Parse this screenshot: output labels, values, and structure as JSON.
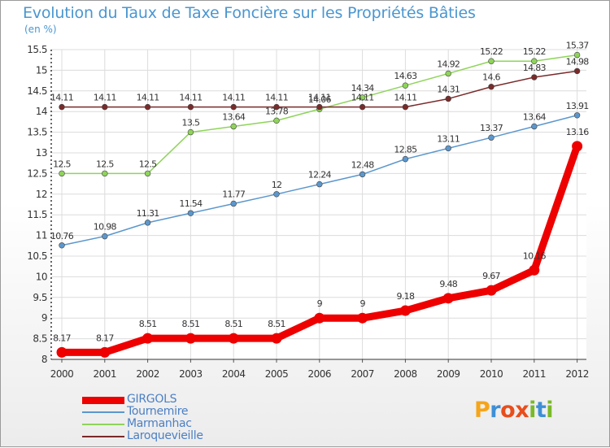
{
  "title": "Evolution du Taux de Taxe Foncière sur les Propriétés Bâties",
  "unit_label": "(en %)",
  "brand": {
    "text": "Proxiti",
    "letters": [
      "P",
      "r",
      "o",
      "x",
      "i",
      "t",
      "i"
    ],
    "colors": [
      "#f5a51a",
      "#3e8fd6",
      "#e84e1b",
      "#e84e1b",
      "#7ab929",
      "#3e8fd6",
      "#7ab929"
    ]
  },
  "chart_data": {
    "type": "line",
    "title": "Evolution du Taux de Taxe Foncière sur les Propriétés Bâties",
    "ylabel": "(en %)",
    "xlabel": "",
    "x": [
      "2000",
      "2001",
      "2002",
      "2003",
      "2004",
      "2005",
      "2006",
      "2007",
      "2008",
      "2009",
      "2010",
      "2011",
      "2012"
    ],
    "ylim": [
      8,
      15.5
    ],
    "yticks": [
      "8",
      "8.5",
      "9",
      "9.5",
      "10",
      "10.5",
      "11",
      "11.5",
      "12",
      "12.5",
      "13",
      "13.5",
      "14",
      "14.5",
      "15",
      "15.5"
    ],
    "grid": true,
    "legend_position": "bottom-left",
    "series": [
      {
        "name": "GIRGOLS",
        "color": "#ee0000",
        "values": [
          8.17,
          8.17,
          8.51,
          8.51,
          8.51,
          8.51,
          9,
          9,
          9.18,
          9.48,
          9.67,
          10.16,
          13.16
        ],
        "labels": [
          "8.17",
          "8.17",
          "8.51",
          "8.51",
          "8.51",
          "8.51",
          "9",
          "9",
          "9.18",
          "9.48",
          "9.67",
          "10.16",
          "13.16"
        ]
      },
      {
        "name": "Tournemire",
        "color": "#5b97cd",
        "values": [
          10.76,
          10.98,
          11.31,
          11.54,
          11.77,
          12,
          12.24,
          12.48,
          12.85,
          13.11,
          13.37,
          13.64,
          13.91
        ],
        "labels": [
          "10.76",
          "10.98",
          "11.31",
          "11.54",
          "11.77",
          "12",
          "12.24",
          "12.48",
          "12.85",
          "13.11",
          "13.37",
          "13.64",
          "13.91"
        ]
      },
      {
        "name": "Marmanhac",
        "color": "#8fd45a",
        "values": [
          12.5,
          12.5,
          12.5,
          13.5,
          13.64,
          13.78,
          14.06,
          14.34,
          14.63,
          14.92,
          15.22,
          15.22,
          15.37
        ],
        "labels": [
          "12.5",
          "12.5",
          "12.5",
          "13.5",
          "13.64",
          "13.78",
          "14.06",
          "14.34",
          "14.63",
          "14.92",
          "15.22",
          "15.22",
          "15.37"
        ]
      },
      {
        "name": "Laroquevieille",
        "color": "#7a2a2a",
        "values": [
          14.11,
          14.11,
          14.11,
          14.11,
          14.11,
          14.11,
          14.11,
          14.11,
          14.11,
          14.31,
          14.6,
          14.83,
          14.98
        ],
        "labels": [
          "14.11",
          "14.11",
          "14.11",
          "14.11",
          "14.11",
          "14.11",
          "14.11",
          "14.11",
          "14.11",
          "14.31",
          "14.6",
          "14.83",
          "14.98"
        ]
      }
    ]
  }
}
